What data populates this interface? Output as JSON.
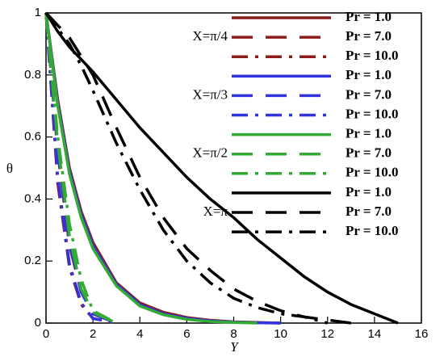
{
  "chart_data": {
    "type": "line",
    "xlabel": "Y",
    "ylabel": "θ",
    "x": [
      0,
      0.5,
      1,
      1.5,
      2,
      3,
      4,
      5,
      6,
      7,
      8,
      9,
      10,
      11,
      12,
      13,
      14,
      15
    ],
    "xlim": [
      0,
      16
    ],
    "xticks": [
      0,
      2,
      4,
      6,
      8,
      10,
      12,
      14,
      16
    ],
    "ylim": [
      0,
      1
    ],
    "yticks": [
      0,
      0.2,
      0.4,
      0.6,
      0.8,
      1
    ],
    "legend_groups": [
      "X=π/4",
      "X=π/3",
      "X=π/2",
      "X=π"
    ],
    "series": [
      {
        "name": "Pr = 1.0",
        "color": "#8b1a1a",
        "style": "solid",
        "values": [
          1,
          0.72,
          0.5,
          0.36,
          0.26,
          0.13,
          0.065,
          0.035,
          0.018,
          0.009,
          0.004,
          0.002,
          0,
          null,
          null,
          null,
          null,
          null
        ]
      },
      {
        "name": "Pr = 7.0",
        "color": "#8b1a1a",
        "style": "dashed",
        "values": [
          1,
          0.55,
          0.25,
          0.1,
          0.03,
          0,
          null,
          null,
          null,
          null,
          null,
          null,
          null,
          null,
          null,
          null,
          null,
          null
        ]
      },
      {
        "name": "Pr = 10.0",
        "color": "#8b1a1a",
        "style": "dashdot",
        "values": [
          1,
          0.45,
          0.18,
          0.06,
          0.015,
          0,
          null,
          null,
          null,
          null,
          null,
          null,
          null,
          null,
          null,
          null,
          null,
          null
        ]
      },
      {
        "name": "Pr = 1.0",
        "color": "#3333dd",
        "style": "solid",
        "values": [
          1,
          0.71,
          0.49,
          0.35,
          0.25,
          0.125,
          0.06,
          0.03,
          0.015,
          0.007,
          0.003,
          0.001,
          0,
          null,
          null,
          null,
          null,
          null
        ]
      },
      {
        "name": "Pr = 7.0",
        "color": "#3333dd",
        "style": "dashed",
        "values": [
          1,
          0.56,
          0.26,
          0.1,
          0.03,
          0,
          null,
          null,
          null,
          null,
          null,
          null,
          null,
          null,
          null,
          null,
          null,
          null
        ]
      },
      {
        "name": "Pr = 10.0",
        "color": "#3333dd",
        "style": "dashdot",
        "values": [
          1,
          0.47,
          0.19,
          0.065,
          0.015,
          0,
          null,
          null,
          null,
          null,
          null,
          null,
          null,
          null,
          null,
          null,
          null,
          null
        ]
      },
      {
        "name": "Pr = 1.0",
        "color": "#33aa33",
        "style": "solid",
        "values": [
          1,
          0.7,
          0.48,
          0.34,
          0.24,
          0.12,
          0.055,
          0.027,
          0.012,
          0.005,
          0.002,
          0,
          null,
          null,
          null,
          null,
          null,
          null
        ]
      },
      {
        "name": "Pr = 7.0",
        "color": "#33aa33",
        "style": "dashed",
        "values": [
          1,
          0.58,
          0.28,
          0.11,
          0.035,
          0,
          null,
          null,
          null,
          null,
          null,
          null,
          null,
          null,
          null,
          null,
          null,
          null
        ]
      },
      {
        "name": "Pr = 10.0",
        "color": "#33aa33",
        "style": "dashdot",
        "values": [
          1,
          0.6,
          0.32,
          0.14,
          0.04,
          0,
          null,
          null,
          null,
          null,
          null,
          null,
          null,
          null,
          null,
          null,
          null,
          null
        ]
      },
      {
        "name": "Pr = 1.0",
        "color": "#000000",
        "style": "solid",
        "values": [
          1,
          0.94,
          0.89,
          0.85,
          0.81,
          0.72,
          0.63,
          0.55,
          0.47,
          0.4,
          0.34,
          0.27,
          0.21,
          0.15,
          0.1,
          0.06,
          0.03,
          0
        ]
      },
      {
        "name": "Pr = 7.0",
        "color": "#000000",
        "style": "dashed",
        "values": [
          1,
          0.96,
          0.92,
          0.86,
          0.8,
          0.63,
          0.47,
          0.34,
          0.24,
          0.17,
          0.11,
          0.07,
          0.04,
          0.02,
          0.01,
          0,
          null,
          null
        ]
      },
      {
        "name": "Pr = 10.0",
        "color": "#000000",
        "style": "dashdot",
        "values": [
          1,
          0.95,
          0.9,
          0.83,
          0.75,
          0.58,
          0.43,
          0.3,
          0.2,
          0.13,
          0.08,
          0.05,
          0.03,
          0.02,
          0,
          null,
          null,
          null
        ]
      }
    ]
  }
}
